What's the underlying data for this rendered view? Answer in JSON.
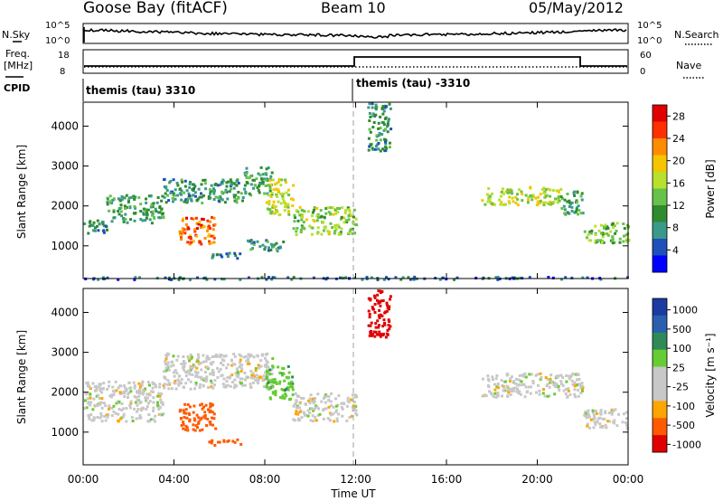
{
  "header": {
    "station": "Goose Bay (fitACF)",
    "beam": "Beam 10",
    "date": "05/May/2012"
  },
  "strip_labels": {
    "nsky": "N.Sky",
    "freq_line1": "Freq.",
    "freq_line2": "[MHz]",
    "cpid": "CPID",
    "nsearch": "N.Search",
    "nave": "Nave"
  },
  "noise_axis": {
    "left_ticks": [
      "10^5",
      "10^0"
    ],
    "right_ticks": [
      "10^5",
      "10^0"
    ]
  },
  "freq_axis": {
    "left_ticks": [
      "18",
      "8"
    ],
    "right_ticks": [
      "60",
      "0"
    ]
  },
  "cpid_segments": [
    {
      "label": "themis (tau) 3310",
      "start_hour": 0
    },
    {
      "label": "themis (tau) -3310",
      "start_hour": 12
    }
  ],
  "colors": {
    "power_scale": [
      "#0000ff",
      "#1f4fb8",
      "#3a9a8a",
      "#2e8b2e",
      "#66c24a",
      "#b8e02c",
      "#f5c500",
      "#ff8c00",
      "#ff3000",
      "#e00000"
    ],
    "velocity_scale": [
      "#e00000",
      "#ff5a00",
      "#ffa500",
      "#c8c8c8",
      "#c8c8c8",
      "#66cc33",
      "#2e8b57",
      "#2a5fb0",
      "#1a3ca0"
    ],
    "ground_scatter": "#c8c8c8"
  },
  "chart_data": [
    {
      "type": "heatmap",
      "panel": "power",
      "xlabel": "",
      "ylabel": "Slant Range [km]",
      "xlim": [
        0,
        24
      ],
      "ylim": [
        180,
        4600
      ],
      "x_ticks": [
        "00:00",
        "04:00",
        "08:00",
        "12:00",
        "16:00",
        "20:00",
        "00:00"
      ],
      "y_ticks": [
        "1000",
        "2000",
        "3000",
        "4000"
      ],
      "colorbar": {
        "label": "Power [dB]",
        "ticks": [
          "28",
          "24",
          "20",
          "16",
          "12",
          "8",
          "4"
        ],
        "range": [
          0,
          30
        ]
      },
      "regions": [
        {
          "t0": 0.0,
          "t1": 1.0,
          "r0": 1300,
          "r1": 1700,
          "value": 9
        },
        {
          "t0": 1.0,
          "t1": 3.5,
          "r0": 1600,
          "r1": 2300,
          "value": 10
        },
        {
          "t0": 3.5,
          "t1": 7.0,
          "r0": 2100,
          "r1": 2700,
          "value": 9
        },
        {
          "t0": 7.0,
          "t1": 8.3,
          "r0": 2300,
          "r1": 3000,
          "value": 10
        },
        {
          "t0": 4.2,
          "t1": 5.8,
          "r0": 1050,
          "r1": 1750,
          "value": 24
        },
        {
          "t0": 8.0,
          "t1": 9.2,
          "r0": 1800,
          "r1": 2700,
          "value": 17
        },
        {
          "t0": 9.2,
          "t1": 12.0,
          "r0": 1300,
          "r1": 2000,
          "value": 15
        },
        {
          "t0": 7.2,
          "t1": 8.8,
          "r0": 900,
          "r1": 1200,
          "value": 9
        },
        {
          "t0": 5.5,
          "t1": 7.0,
          "r0": 700,
          "r1": 850,
          "value": 7
        },
        {
          "t0": 12.5,
          "t1": 13.5,
          "r0": 3400,
          "r1": 4600,
          "value": 9
        },
        {
          "t0": 17.5,
          "t1": 21.0,
          "r0": 2050,
          "r1": 2500,
          "value": 16
        },
        {
          "t0": 21.0,
          "t1": 22.0,
          "r0": 1800,
          "r1": 2400,
          "value": 10
        },
        {
          "t0": 22.0,
          "t1": 24.0,
          "r0": 1100,
          "r1": 1600,
          "value": 14
        },
        {
          "t0": 0.0,
          "t1": 24.0,
          "r0": 180,
          "r1": 250,
          "value": 6
        }
      ]
    },
    {
      "type": "heatmap",
      "panel": "velocity",
      "xlabel": "Time UT",
      "ylabel": "Slant Range [km]",
      "xlim": [
        0,
        24
      ],
      "ylim": [
        180,
        4600
      ],
      "x_ticks": [
        "00:00",
        "04:00",
        "08:00",
        "12:00",
        "16:00",
        "20:00",
        "00:00"
      ],
      "y_ticks": [
        "1000",
        "2000",
        "3000",
        "4000"
      ],
      "colorbar": {
        "label": "Velocity [m s⁻¹]",
        "ticks": [
          "1000",
          "500",
          "100",
          "25",
          "-25",
          "-100",
          "-500",
          "-1000"
        ]
      },
      "regions": [
        {
          "t0": 0.0,
          "t1": 3.5,
          "r0": 1300,
          "r1": 2300,
          "value": 0
        },
        {
          "t0": 3.5,
          "t1": 8.3,
          "r0": 2100,
          "r1": 3000,
          "value": 0
        },
        {
          "t0": 4.2,
          "t1": 5.8,
          "r0": 1050,
          "r1": 1750,
          "value": -300
        },
        {
          "t0": 8.0,
          "t1": 9.2,
          "r0": 1800,
          "r1": 2700,
          "value": 80
        },
        {
          "t0": 9.2,
          "t1": 12.0,
          "r0": 1300,
          "r1": 2000,
          "value": 0
        },
        {
          "t0": 5.5,
          "t1": 7.0,
          "r0": 700,
          "r1": 850,
          "value": -150
        },
        {
          "t0": 12.5,
          "t1": 13.5,
          "r0": 3400,
          "r1": 4600,
          "value": -800
        },
        {
          "t0": 17.5,
          "t1": 22.0,
          "r0": 1900,
          "r1": 2500,
          "value": 0
        },
        {
          "t0": 22.0,
          "t1": 24.0,
          "r0": 1100,
          "r1": 1600,
          "value": 0
        }
      ]
    }
  ]
}
